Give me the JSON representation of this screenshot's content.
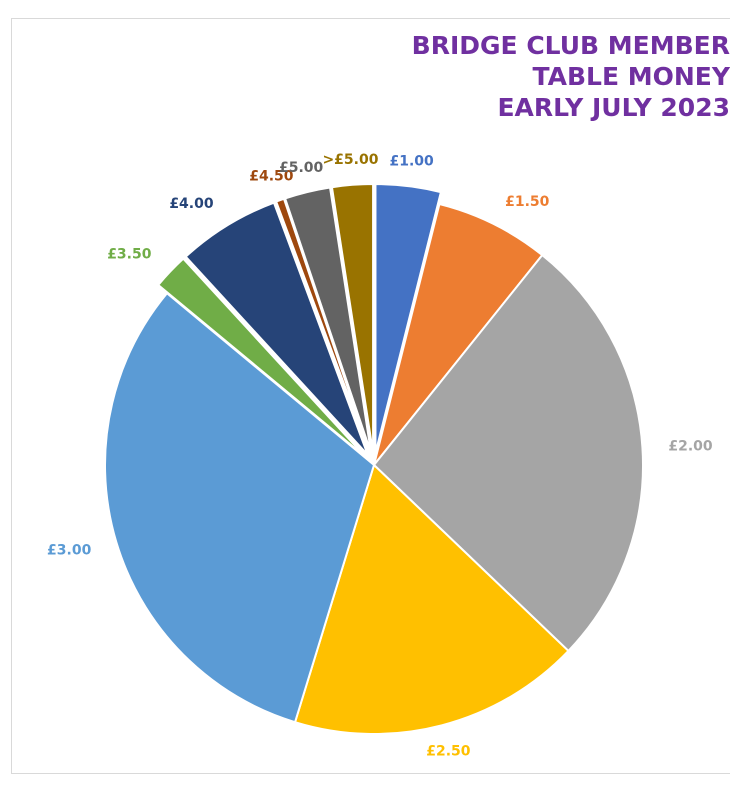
{
  "chart_data": {
    "type": "pie",
    "title": [
      "BRIDGE CLUB MEMBER",
      "TABLE MONEY",
      "EARLY JULY 2023"
    ],
    "legend": "none",
    "categories": [
      "£1.00",
      "£1.50",
      "£2.00",
      "£2.50",
      "£3.00",
      "£3.50",
      "£4.00",
      "£4.50",
      "£5.00",
      ">£5.00"
    ],
    "values": [
      4,
      7,
      27,
      18,
      32,
      2.2,
      6.3,
      0.5,
      2.8,
      2.5
    ],
    "exploded": [
      true,
      false,
      false,
      false,
      false,
      true,
      true,
      true,
      true,
      true
    ],
    "colors": [
      "#4472c4",
      "#ed7d31",
      "#a5a5a5",
      "#ffc000",
      "#5b9bd5",
      "#70ad47",
      "#264478",
      "#9e480e",
      "#636363",
      "#997300"
    ]
  }
}
